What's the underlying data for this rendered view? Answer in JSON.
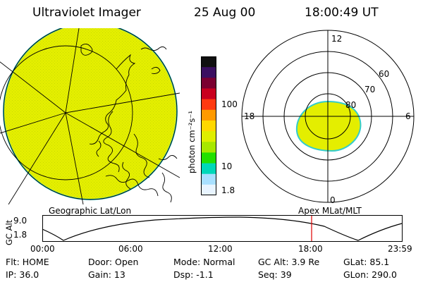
{
  "header": {
    "instrument": "Ultraviolet Imager",
    "date": "25 Aug 00",
    "time": "18:00:49 UT"
  },
  "colorbar": {
    "label": "photon cm⁻²s⁻¹",
    "ticks": [
      {
        "value": 100,
        "label": "100"
      },
      {
        "value": 10,
        "label": "10"
      },
      {
        "value": 1.8,
        "label": "1.8"
      }
    ],
    "colors": [
      "#101010",
      "#3a0f60",
      "#7a0030",
      "#c8001e",
      "#ff3a10",
      "#ff9a00",
      "#ffd800",
      "#dfee00",
      "#a8e800",
      "#22e000",
      "#00d8b8",
      "#a8e0ff",
      "#e8f4ff"
    ]
  },
  "polar": {
    "mlt_labels": {
      "top": "12",
      "left": "18",
      "right": "6",
      "bottom": "0"
    },
    "lat_labels": [
      "60",
      "70",
      "80"
    ],
    "oval_color": "#e4ee00"
  },
  "geo_map": {
    "fill_color": "#e4ee00",
    "edge_color": "#33cccc"
  },
  "timeline": {
    "left_title": "Geographic Lat/Lon",
    "right_title": "Apex MLat/MLT",
    "axis_label": "GC Alt",
    "y_ticks": [
      "9.0",
      "1.8"
    ],
    "time_ticks": [
      "00:00",
      "06:00",
      "12:00",
      "18:00",
      "23:59"
    ],
    "current_time_marker": "18:00",
    "marker_color": "#e00000"
  },
  "info": {
    "row1": {
      "flt": "Flt: HOME",
      "door": "Door: Open",
      "mode": "Mode: Normal",
      "gc_alt": "GC Alt: 3.9 Re",
      "glat": "GLat:  85.1"
    },
    "row2": {
      "ip": "IP: 36.0",
      "gain": "Gain: 13",
      "dsp": "Dsp:   -1.1",
      "seq": "Seq: 39",
      "glon": "GLon: 290.0"
    }
  }
}
